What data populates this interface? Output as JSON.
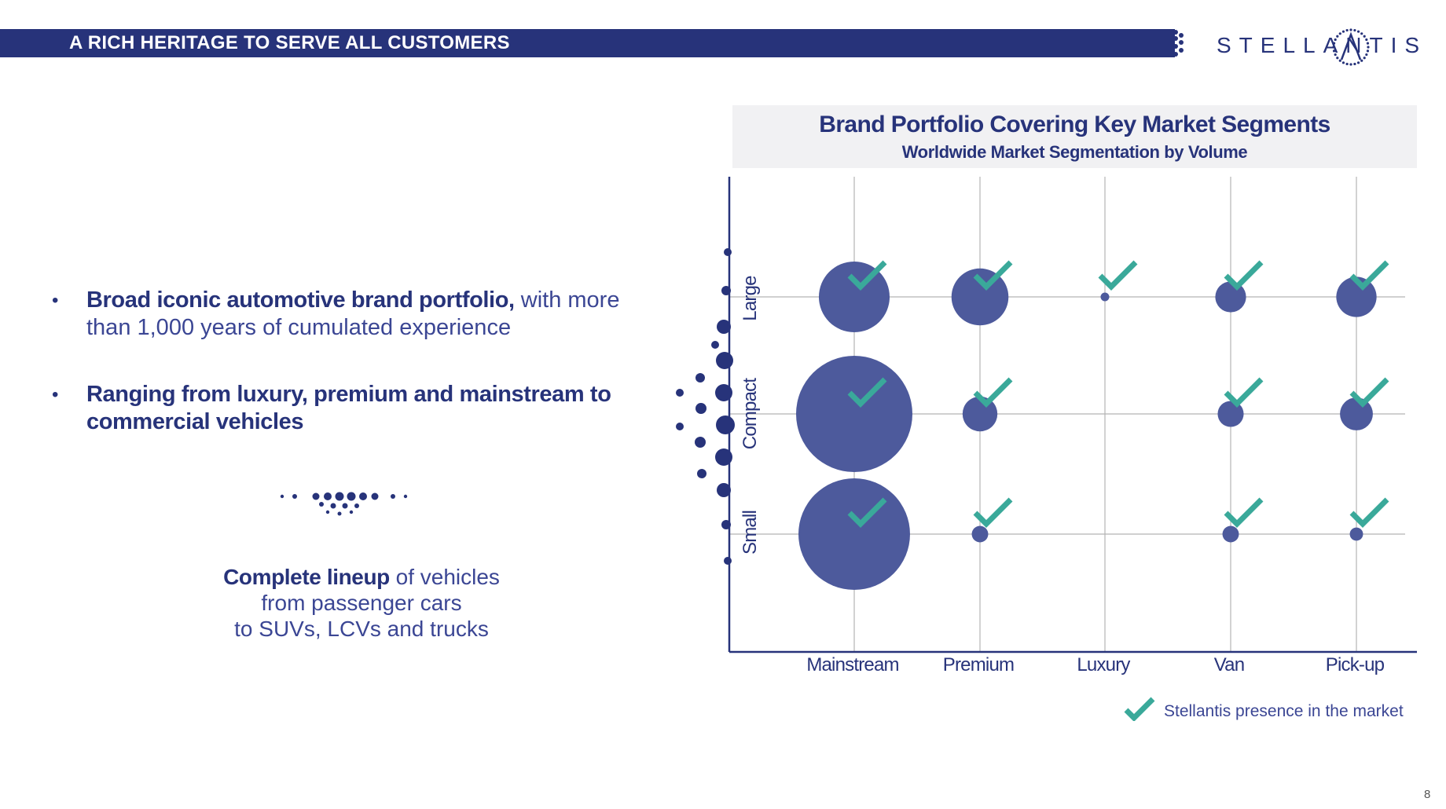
{
  "header": {
    "title": "A RICH HERITAGE TO SERVE ALL CUSTOMERS",
    "logo_text": "STELLANTIS"
  },
  "bullets": [
    {
      "bold": "Broad iconic automotive brand portfolio,",
      "light": " with more than 1,000 years of cumulated experience"
    },
    {
      "bold": "Ranging from luxury, premium and mainstream to commercial vehicles",
      "light": ""
    }
  ],
  "lineup": {
    "bold": "Complete lineup",
    "line1": " of vehicles",
    "line2": "from passenger cars",
    "line3": "to SUVs, LCVs and trucks"
  },
  "page_number": "8",
  "colors": {
    "navy": "#27337a",
    "bubble": "#4d5a9c",
    "check": "#3aa99a",
    "grid": "#b4b4b4"
  },
  "chart_data": {
    "type": "bubble",
    "title": "Brand Portfolio Covering Key Market Segments",
    "subtitle": "Worldwide Market Segmentation by Volume",
    "x_categories": [
      "Mainstream",
      "Premium",
      "Luxury",
      "Van",
      "Pick-up"
    ],
    "y_categories": [
      "Small",
      "Compact",
      "Large"
    ],
    "size_unit": "relative market volume",
    "points": [
      {
        "x": "Mainstream",
        "y": "Large",
        "size": 0.37,
        "presence": true
      },
      {
        "x": "Mainstream",
        "y": "Compact",
        "size": 1.0,
        "presence": true
      },
      {
        "x": "Mainstream",
        "y": "Small",
        "size": 0.92,
        "presence": true
      },
      {
        "x": "Premium",
        "y": "Large",
        "size": 0.24,
        "presence": true
      },
      {
        "x": "Premium",
        "y": "Compact",
        "size": 0.09,
        "presence": true
      },
      {
        "x": "Premium",
        "y": "Small",
        "size": 0.02,
        "presence": true
      },
      {
        "x": "Luxury",
        "y": "Large",
        "size": 0.005,
        "presence": true
      },
      {
        "x": "Van",
        "y": "Large",
        "size": 0.07,
        "presence": true
      },
      {
        "x": "Van",
        "y": "Compact",
        "size": 0.05,
        "presence": true
      },
      {
        "x": "Van",
        "y": "Small",
        "size": 0.02,
        "presence": true
      },
      {
        "x": "Pick-up",
        "y": "Large",
        "size": 0.12,
        "presence": true
      },
      {
        "x": "Pick-up",
        "y": "Compact",
        "size": 0.08,
        "presence": true
      },
      {
        "x": "Pick-up",
        "y": "Small",
        "size": 0.013,
        "presence": true
      }
    ],
    "legend": {
      "icon": "check-icon",
      "label": "Stellantis presence in the market",
      "position": "bottom-right"
    },
    "grid": true
  }
}
